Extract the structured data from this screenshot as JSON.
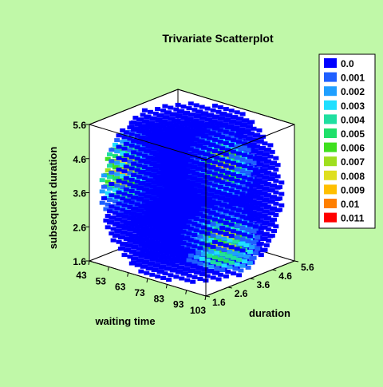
{
  "chart_data": {
    "type": "scatter",
    "projection": "3d",
    "title": "Trivariate Scatterplot",
    "xlabel": "waiting time",
    "ylabel": "duration",
    "zlabel": "subsequent duration",
    "xlim": [
      43,
      103
    ],
    "ylim": [
      1.6,
      5.6
    ],
    "zlim": [
      1.6,
      5.6
    ],
    "x_ticks": [
      "43",
      "53",
      "63",
      "73",
      "83",
      "93",
      "103"
    ],
    "y_ticks": [
      "1.6",
      "2.6",
      "3.6",
      "4.6",
      "5.6"
    ],
    "z_ticks": [
      "1.6",
      "2.6",
      "3.6",
      "4.6",
      "5.6"
    ],
    "grid": {
      "x_count": 22,
      "y_count": 13,
      "z_count": 13
    },
    "color_by": "density",
    "legend_position": "right",
    "legend": [
      {
        "label": "0.0",
        "color": "#0000ff"
      },
      {
        "label": "0.001",
        "color": "#1f5fff"
      },
      {
        "label": "0.002",
        "color": "#1f9fff"
      },
      {
        "label": "0.003",
        "color": "#1fdfff"
      },
      {
        "label": "0.004",
        "color": "#1fdfa0"
      },
      {
        "label": "0.005",
        "color": "#1fe06a"
      },
      {
        "label": "0.006",
        "color": "#3fe01f"
      },
      {
        "label": "0.007",
        "color": "#9fdf1f"
      },
      {
        "label": "0.008",
        "color": "#dfdf1f"
      },
      {
        "label": "0.009",
        "color": "#ffbf00"
      },
      {
        "label": "0.01",
        "color": "#ff7f00"
      },
      {
        "label": "0.011",
        "color": "#ff0000"
      }
    ]
  }
}
